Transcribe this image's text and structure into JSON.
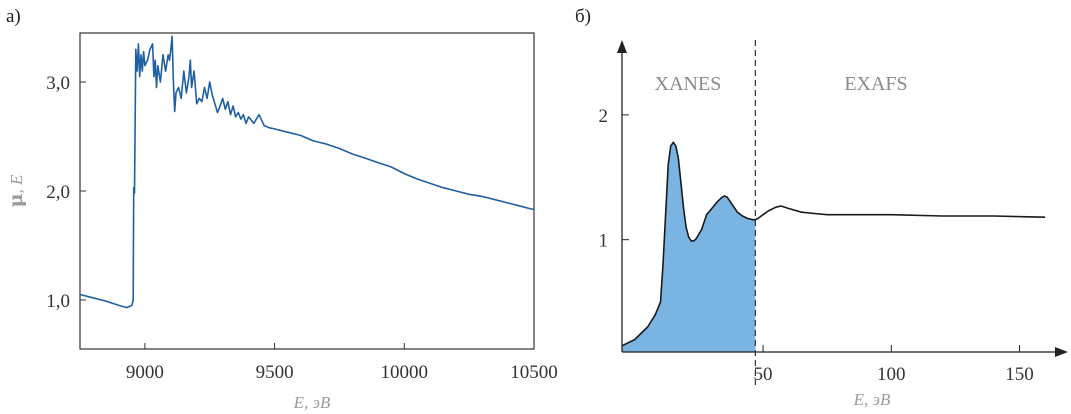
{
  "chart_data": [
    {
      "type": "line",
      "panel_label": "а)",
      "xlabel": "E, эВ",
      "ylabel_symbol": "μ",
      "ylabel_rest": ", E",
      "xlim": [
        8750,
        10500
      ],
      "ylim": [
        0.55,
        3.45
      ],
      "x_ticks": [
        {
          "value": 9000,
          "label": "9000"
        },
        {
          "value": 9500,
          "label": "9500"
        },
        {
          "value": 10000,
          "label": "10000"
        },
        {
          "value": 10500,
          "label": "10500"
        }
      ],
      "y_ticks": [
        {
          "value": 1.0,
          "label": "1,0"
        },
        {
          "value": 2.0,
          "label": "2,0"
        },
        {
          "value": 3.0,
          "label": "3,0"
        }
      ],
      "line_color": "#1f5fa3",
      "series": [
        {
          "points": [
            [
              8750,
              1.05
            ],
            [
              8800,
              1.02
            ],
            [
              8850,
              0.99
            ],
            [
              8900,
              0.95
            ],
            [
              8930,
              0.93
            ],
            [
              8950,
              0.95
            ],
            [
              8955,
              1.0
            ],
            [
              8957,
              2.03
            ],
            [
              8960,
              1.98
            ],
            [
              8965,
              3.3
            ],
            [
              8970,
              3.1
            ],
            [
              8975,
              3.35
            ],
            [
              8980,
              3.05
            ],
            [
              8985,
              3.25
            ],
            [
              8990,
              3.1
            ],
            [
              8995,
              3.28
            ],
            [
              9000,
              3.15
            ],
            [
              9010,
              3.2
            ],
            [
              9020,
              3.3
            ],
            [
              9030,
              3.35
            ],
            [
              9035,
              3.05
            ],
            [
              9040,
              3.2
            ],
            [
              9045,
              2.95
            ],
            [
              9050,
              3.15
            ],
            [
              9060,
              3.0
            ],
            [
              9070,
              3.25
            ],
            [
              9080,
              3.1
            ],
            [
              9090,
              3.25
            ],
            [
              9095,
              3.2
            ],
            [
              9100,
              3.3
            ],
            [
              9105,
              3.42
            ],
            [
              9110,
              3.0
            ],
            [
              9115,
              2.73
            ],
            [
              9120,
              2.9
            ],
            [
              9130,
              2.95
            ],
            [
              9140,
              2.85
            ],
            [
              9150,
              3.1
            ],
            [
              9160,
              2.9
            ],
            [
              9170,
              3.05
            ],
            [
              9175,
              3.2
            ],
            [
              9180,
              2.95
            ],
            [
              9190,
              3.1
            ],
            [
              9200,
              2.8
            ],
            [
              9210,
              2.85
            ],
            [
              9220,
              2.82
            ],
            [
              9230,
              2.95
            ],
            [
              9240,
              2.85
            ],
            [
              9250,
              3.0
            ],
            [
              9260,
              2.88
            ],
            [
              9270,
              2.8
            ],
            [
              9280,
              2.72
            ],
            [
              9290,
              2.78
            ],
            [
              9300,
              2.85
            ],
            [
              9310,
              2.75
            ],
            [
              9320,
              2.82
            ],
            [
              9330,
              2.7
            ],
            [
              9340,
              2.78
            ],
            [
              9350,
              2.68
            ],
            [
              9360,
              2.72
            ],
            [
              9370,
              2.66
            ],
            [
              9380,
              2.7
            ],
            [
              9390,
              2.62
            ],
            [
              9400,
              2.68
            ],
            [
              9420,
              2.62
            ],
            [
              9440,
              2.7
            ],
            [
              9450,
              2.65
            ],
            [
              9460,
              2.6
            ],
            [
              9480,
              2.58
            ],
            [
              9500,
              2.57
            ],
            [
              9550,
              2.54
            ],
            [
              9600,
              2.51
            ],
            [
              9650,
              2.46
            ],
            [
              9700,
              2.43
            ],
            [
              9750,
              2.39
            ],
            [
              9800,
              2.34
            ],
            [
              9850,
              2.3
            ],
            [
              9900,
              2.26
            ],
            [
              9950,
              2.22
            ],
            [
              10000,
              2.16
            ],
            [
              10050,
              2.11
            ],
            [
              10100,
              2.07
            ],
            [
              10150,
              2.03
            ],
            [
              10200,
              2.0
            ],
            [
              10250,
              1.97
            ],
            [
              10300,
              1.95
            ],
            [
              10350,
              1.92
            ],
            [
              10400,
              1.89
            ],
            [
              10450,
              1.86
            ],
            [
              10480,
              1.84
            ],
            [
              10500,
              1.83
            ]
          ]
        }
      ]
    },
    {
      "type": "area",
      "panel_label": "б)",
      "xlabel": "E, эВ",
      "xlim": [
        -5,
        165
      ],
      "ylim": [
        0.1,
        2.6
      ],
      "x_ticks": [
        {
          "value": 50,
          "label": "50"
        },
        {
          "value": 100,
          "label": "100"
        },
        {
          "value": 150,
          "label": "150"
        }
      ],
      "y_ticks": [
        {
          "value": 1,
          "label": "1"
        },
        {
          "value": 2,
          "label": "2"
        }
      ],
      "divider_x": 47,
      "regions": [
        {
          "label": "XANES"
        },
        {
          "label": "EXAFS"
        }
      ],
      "fill_color": "#7ab4e3",
      "line_color": "#1a1a1a",
      "series": [
        {
          "points": [
            [
              -5,
              0.15
            ],
            [
              0,
              0.2
            ],
            [
              5,
              0.3
            ],
            [
              8,
              0.4
            ],
            [
              10,
              0.5
            ],
            [
              11,
              0.8
            ],
            [
              12,
              1.2
            ],
            [
              13,
              1.6
            ],
            [
              14,
              1.75
            ],
            [
              15,
              1.78
            ],
            [
              16,
              1.75
            ],
            [
              17,
              1.65
            ],
            [
              18,
              1.45
            ],
            [
              19,
              1.25
            ],
            [
              20,
              1.1
            ],
            [
              21,
              1.02
            ],
            [
              22,
              0.99
            ],
            [
              23,
              0.99
            ],
            [
              24,
              1.01
            ],
            [
              26,
              1.08
            ],
            [
              28,
              1.2
            ],
            [
              30,
              1.25
            ],
            [
              32,
              1.3
            ],
            [
              34,
              1.34
            ],
            [
              35,
              1.35
            ],
            [
              36,
              1.34
            ],
            [
              38,
              1.28
            ],
            [
              40,
              1.22
            ],
            [
              42,
              1.19
            ],
            [
              44,
              1.17
            ],
            [
              46,
              1.16
            ],
            [
              47,
              1.16
            ],
            [
              48,
              1.17
            ],
            [
              50,
              1.2
            ],
            [
              52,
              1.23
            ],
            [
              55,
              1.26
            ],
            [
              57,
              1.27
            ],
            [
              60,
              1.25
            ],
            [
              65,
              1.22
            ],
            [
              70,
              1.21
            ],
            [
              75,
              1.2
            ],
            [
              80,
              1.2
            ],
            [
              100,
              1.2
            ],
            [
              120,
              1.19
            ],
            [
              140,
              1.19
            ],
            [
              160,
              1.18
            ]
          ]
        }
      ]
    }
  ]
}
